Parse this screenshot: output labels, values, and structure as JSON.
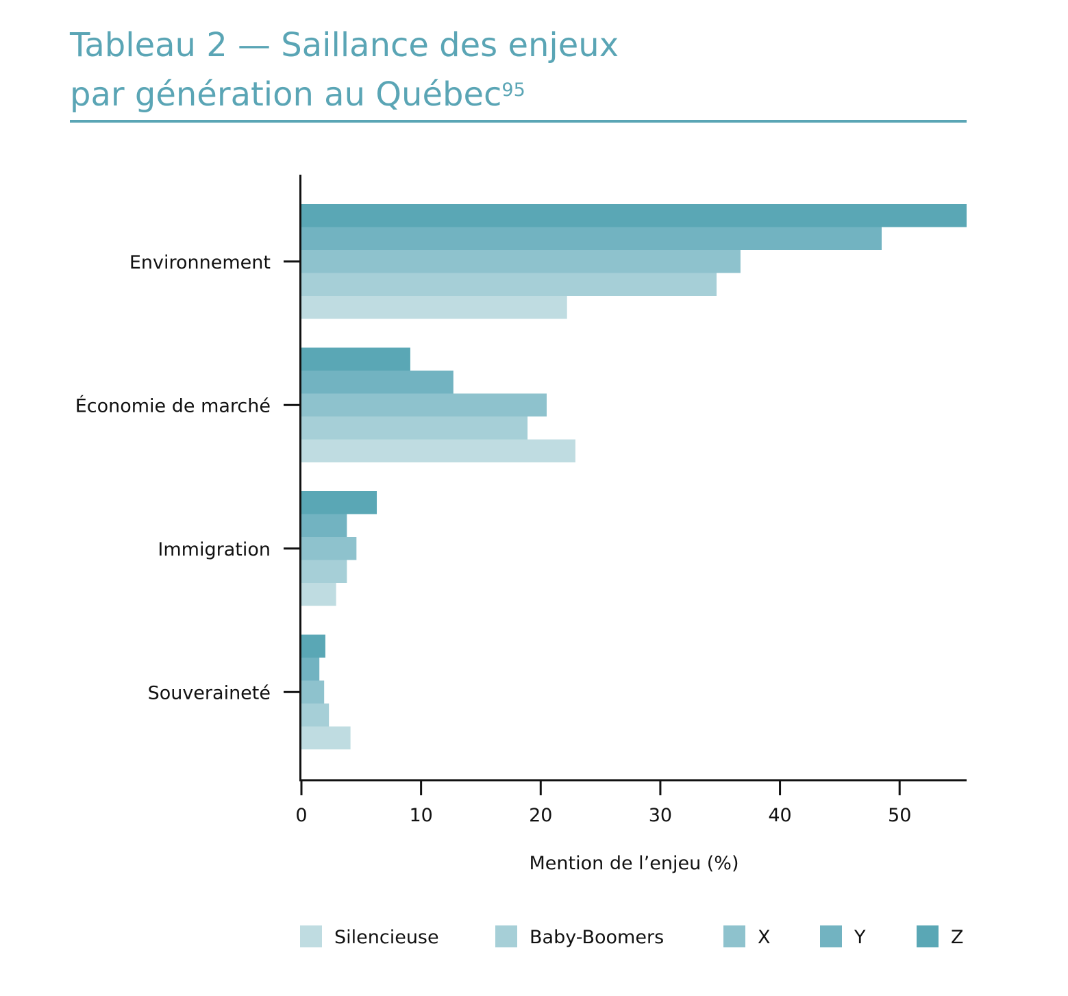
{
  "title": {
    "line1": "Tableau 2 — Saillance des enjeux",
    "line2": "par génération au Québec",
    "footnote": "95"
  },
  "colors": {
    "title": "#5aa5b5",
    "Silencieuse": "#bfdce1",
    "Baby-Boomers": "#a6cfd7",
    "X": "#8ec2cd",
    "Y": "#72b3c1",
    "Z": "#5aa7b5"
  },
  "chart_data": {
    "type": "bar",
    "orientation": "horizontal",
    "categories": [
      "Environnement",
      "Économie de marché",
      "Immigration",
      "Souveraineté"
    ],
    "series": [
      {
        "name": "Silencieuse",
        "values": [
          22.2,
          22.9,
          2.9,
          4.1
        ]
      },
      {
        "name": "Baby-Boomers",
        "values": [
          34.7,
          18.9,
          3.8,
          2.3
        ]
      },
      {
        "name": "X",
        "values": [
          36.7,
          20.5,
          4.6,
          1.9
        ]
      },
      {
        "name": "Y",
        "values": [
          48.5,
          12.7,
          3.8,
          1.5
        ]
      },
      {
        "name": "Z",
        "values": [
          55.6,
          9.1,
          6.3,
          2.0
        ]
      }
    ],
    "xlabel": "Mention de l’enjeu (%)",
    "xlim": [
      0,
      55.6
    ],
    "xticks": [
      "0",
      "10",
      "20",
      "30",
      "40",
      "50"
    ],
    "legend": [
      "Silencieuse",
      "Baby-Boomers",
      "X",
      "Y",
      "Z"
    ],
    "legend_position": "bottom",
    "grid": false
  }
}
